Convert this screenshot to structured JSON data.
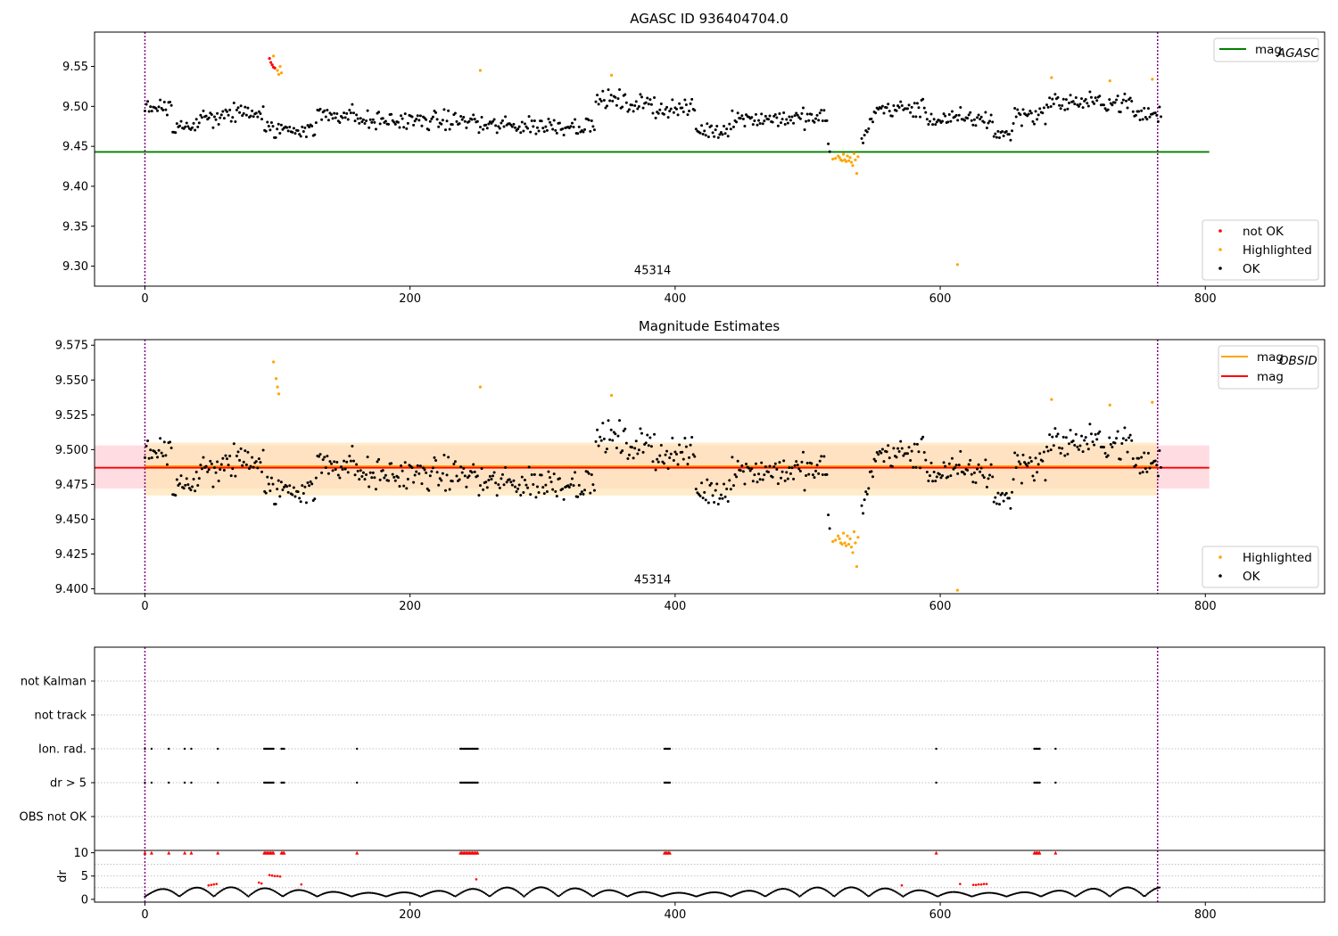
{
  "figure": {
    "title": "AGASC ID 936404704.0"
  },
  "colors": {
    "ok": "#000000",
    "highlighted": "#ffa500",
    "not_ok": "#ff0000",
    "agasc_line": "#008000",
    "mag_line": "#ff0000",
    "obsid_line": "#ffa500",
    "band_obsid": "#ffe4b5",
    "band_mag": "#ffc0cb",
    "obs_boundary": "#800080",
    "grid": "#b0b0b0"
  },
  "chart_data": [
    {
      "id": "agasc_panel",
      "type": "scatter",
      "title": "AGASC ID 936404704.0",
      "xlabel": "",
      "ylabel": "",
      "xlim": [
        -38,
        890
      ],
      "ylim": [
        9.275,
        9.593
      ],
      "x_ticks": [
        0,
        200,
        400,
        600,
        800
      ],
      "y_ticks": [
        "9.30",
        "9.35",
        "9.40",
        "9.45",
        "9.50",
        "9.55"
      ],
      "y_tick_values": [
        9.3,
        9.35,
        9.4,
        9.45,
        9.5,
        9.55
      ],
      "annotation": "45314",
      "annotation_pos": [
        383,
        9.29
      ],
      "obs_boundaries": [
        0,
        764
      ],
      "lines": [
        {
          "name": "mag_{AGASC}",
          "value": 9.443,
          "x_range": [
            -38,
            803
          ]
        }
      ],
      "legend_top": [
        {
          "label": "mag",
          "sub": "AGASC",
          "kind": "line",
          "color_key": "agasc_line"
        }
      ],
      "legend_bottom": [
        {
          "label": "not OK",
          "kind": "point",
          "color_key": "not_ok"
        },
        {
          "label": "Highlighted",
          "kind": "point",
          "color_key": "highlighted"
        },
        {
          "label": "OK",
          "kind": "point",
          "color_key": "ok"
        }
      ],
      "legend_placement": {
        "top": "top-right",
        "bottom": "bottom-right"
      },
      "highlight_points": [
        [
          519,
          9.434
        ],
        [
          521,
          9.435
        ],
        [
          523,
          9.438
        ],
        [
          524,
          9.436
        ],
        [
          525,
          9.433
        ],
        [
          526,
          9.432
        ],
        [
          527,
          9.44
        ],
        [
          528,
          9.433
        ],
        [
          529,
          9.431
        ],
        [
          530,
          9.438
        ],
        [
          531,
          9.432
        ],
        [
          532,
          9.436
        ],
        [
          533,
          9.43
        ],
        [
          534,
          9.426
        ],
        [
          535,
          9.441
        ],
        [
          536,
          9.433
        ],
        [
          537,
          9.416
        ],
        [
          538,
          9.437
        ],
        [
          253,
          9.545
        ],
        [
          352,
          9.539
        ],
        [
          613,
          9.302
        ],
        [
          684,
          9.536
        ],
        [
          728,
          9.532
        ],
        [
          760,
          9.534
        ],
        [
          97,
          9.563
        ],
        [
          100,
          9.545
        ],
        [
          101,
          9.54
        ],
        [
          102,
          9.55
        ],
        [
          103,
          9.542
        ]
      ],
      "not_ok_points": [
        [
          94,
          9.56
        ],
        [
          95,
          9.555
        ],
        [
          96,
          9.552
        ],
        [
          97,
          9.549
        ],
        [
          98,
          9.548
        ]
      ]
    },
    {
      "id": "mag_panel",
      "type": "scatter",
      "title": "Magnitude Estimates",
      "xlabel": "",
      "ylabel": "",
      "xlim": [
        -38,
        890
      ],
      "ylim": [
        9.3965,
        9.579
      ],
      "x_ticks": [
        0,
        200,
        400,
        600,
        800
      ],
      "y_ticks": [
        "9.400",
        "9.425",
        "9.450",
        "9.475",
        "9.500",
        "9.525",
        "9.550",
        "9.575"
      ],
      "y_tick_values": [
        9.4,
        9.425,
        9.45,
        9.475,
        9.5,
        9.525,
        9.55,
        9.575
      ],
      "annotation": "45314",
      "annotation_pos": [
        383,
        9.404
      ],
      "obs_boundaries": [
        0,
        764
      ],
      "mag": 9.487,
      "mag_band": [
        9.472,
        9.503
      ],
      "mag_x_range": [
        -38,
        803
      ],
      "mag_obsid": 9.488,
      "obsid_band": [
        9.467,
        9.505
      ],
      "obsid_x_range": [
        0,
        764
      ],
      "legend_top": [
        {
          "label": "mag",
          "sub": "OBSID",
          "kind": "line",
          "color_key": "obsid_line"
        },
        {
          "label": "mag",
          "sub": "",
          "kind": "line",
          "color_key": "mag_line"
        }
      ],
      "legend_bottom": [
        {
          "label": "Highlighted",
          "kind": "point",
          "color_key": "highlighted"
        },
        {
          "label": "OK",
          "kind": "point",
          "color_key": "ok"
        }
      ],
      "legend_placement": {
        "top": "top-right",
        "bottom": "bottom-right"
      },
      "highlight_points": [
        [
          519,
          9.434
        ],
        [
          521,
          9.435
        ],
        [
          523,
          9.438
        ],
        [
          524,
          9.436
        ],
        [
          525,
          9.433
        ],
        [
          526,
          9.432
        ],
        [
          527,
          9.44
        ],
        [
          528,
          9.433
        ],
        [
          529,
          9.431
        ],
        [
          530,
          9.438
        ],
        [
          531,
          9.432
        ],
        [
          532,
          9.436
        ],
        [
          533,
          9.43
        ],
        [
          534,
          9.426
        ],
        [
          535,
          9.441
        ],
        [
          536,
          9.433
        ],
        [
          537,
          9.416
        ],
        [
          538,
          9.437
        ],
        [
          253,
          9.545
        ],
        [
          352,
          9.539
        ],
        [
          613,
          9.399
        ],
        [
          684,
          9.536
        ],
        [
          728,
          9.532
        ],
        [
          760,
          9.534
        ],
        [
          97,
          9.563
        ],
        [
          99,
          9.551
        ],
        [
          100,
          9.545
        ],
        [
          101,
          9.54
        ]
      ]
    },
    {
      "id": "flags_panel",
      "type": "scatter",
      "title": "",
      "xlabel": "",
      "ylabel": "",
      "xlim": [
        -38,
        890
      ],
      "x_ticks": [
        0,
        200,
        400,
        600,
        800
      ],
      "obs_boundaries": [
        0,
        764
      ],
      "categories": [
        "not Kalman",
        "not track",
        "Ion. rad.",
        "dr > 5",
        "OBS not OK"
      ],
      "flag_x": [
        0,
        5,
        18,
        30,
        35,
        55,
        90,
        91,
        92,
        93,
        94,
        95,
        96,
        97,
        103,
        104,
        105,
        160,
        238,
        239,
        240,
        241,
        242,
        243,
        244,
        245,
        246,
        247,
        248,
        249,
        250,
        251,
        392,
        393,
        394,
        395,
        396,
        597,
        671,
        672,
        673,
        674,
        675,
        687
      ],
      "flag_rows": [
        "Ion. rad.",
        "dr > 5"
      ]
    },
    {
      "id": "dr_panel",
      "type": "scatter",
      "title": "",
      "xlabel": "",
      "ylabel": "dr",
      "xlim": [
        -38,
        890
      ],
      "ylim": [
        -0.6,
        10.5
      ],
      "x_ticks": [
        0,
        200,
        400,
        600,
        800
      ],
      "x_tick_labels": [
        "0",
        "200",
        "400",
        "600",
        "800"
      ],
      "y_ticks": [
        "0",
        "5",
        "10"
      ],
      "y_tick_values": [
        0,
        5,
        10
      ],
      "obs_boundaries": [
        0,
        764
      ],
      "capped_value": 10,
      "red_points": [
        [
          48,
          3.0
        ],
        [
          50,
          3.1
        ],
        [
          52,
          3.2
        ],
        [
          54,
          3.3
        ],
        [
          86,
          3.6
        ],
        [
          88,
          3.4
        ],
        [
          94,
          5.2
        ],
        [
          96,
          5.1
        ],
        [
          98,
          5.0
        ],
        [
          100,
          5.0
        ],
        [
          102,
          4.9
        ],
        [
          118,
          3.2
        ],
        [
          250,
          4.3
        ],
        [
          571,
          3.0
        ],
        [
          615,
          3.3
        ],
        [
          625,
          3.1
        ],
        [
          627,
          3.1
        ],
        [
          629,
          3.2
        ],
        [
          631,
          3.2
        ],
        [
          633,
          3.3
        ],
        [
          635,
          3.3
        ]
      ]
    }
  ]
}
